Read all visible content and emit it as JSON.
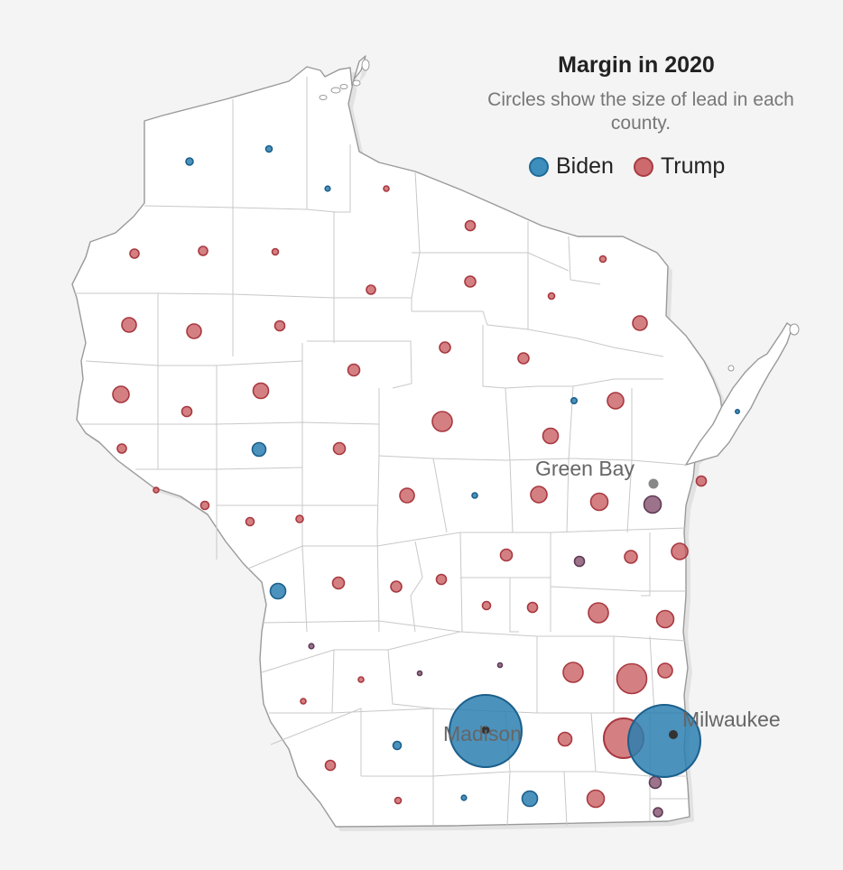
{
  "legend": {
    "title": "Margin in 2020",
    "subtitle": "Circles show the size of lead in each county.",
    "biden_label": "Biden",
    "trump_label": "Trump"
  },
  "colors": {
    "biden": "#2b7fb0",
    "trump": "#c6555a",
    "background": "#f4f4f4",
    "land": "#ffffff",
    "city_dot": "#888888"
  },
  "cities": [
    {
      "name": "Green Bay",
      "label": "Green Bay"
    },
    {
      "name": "Madison",
      "label": "Madison"
    },
    {
      "name": "Milwaukee",
      "label": "Milwaukee"
    }
  ]
}
